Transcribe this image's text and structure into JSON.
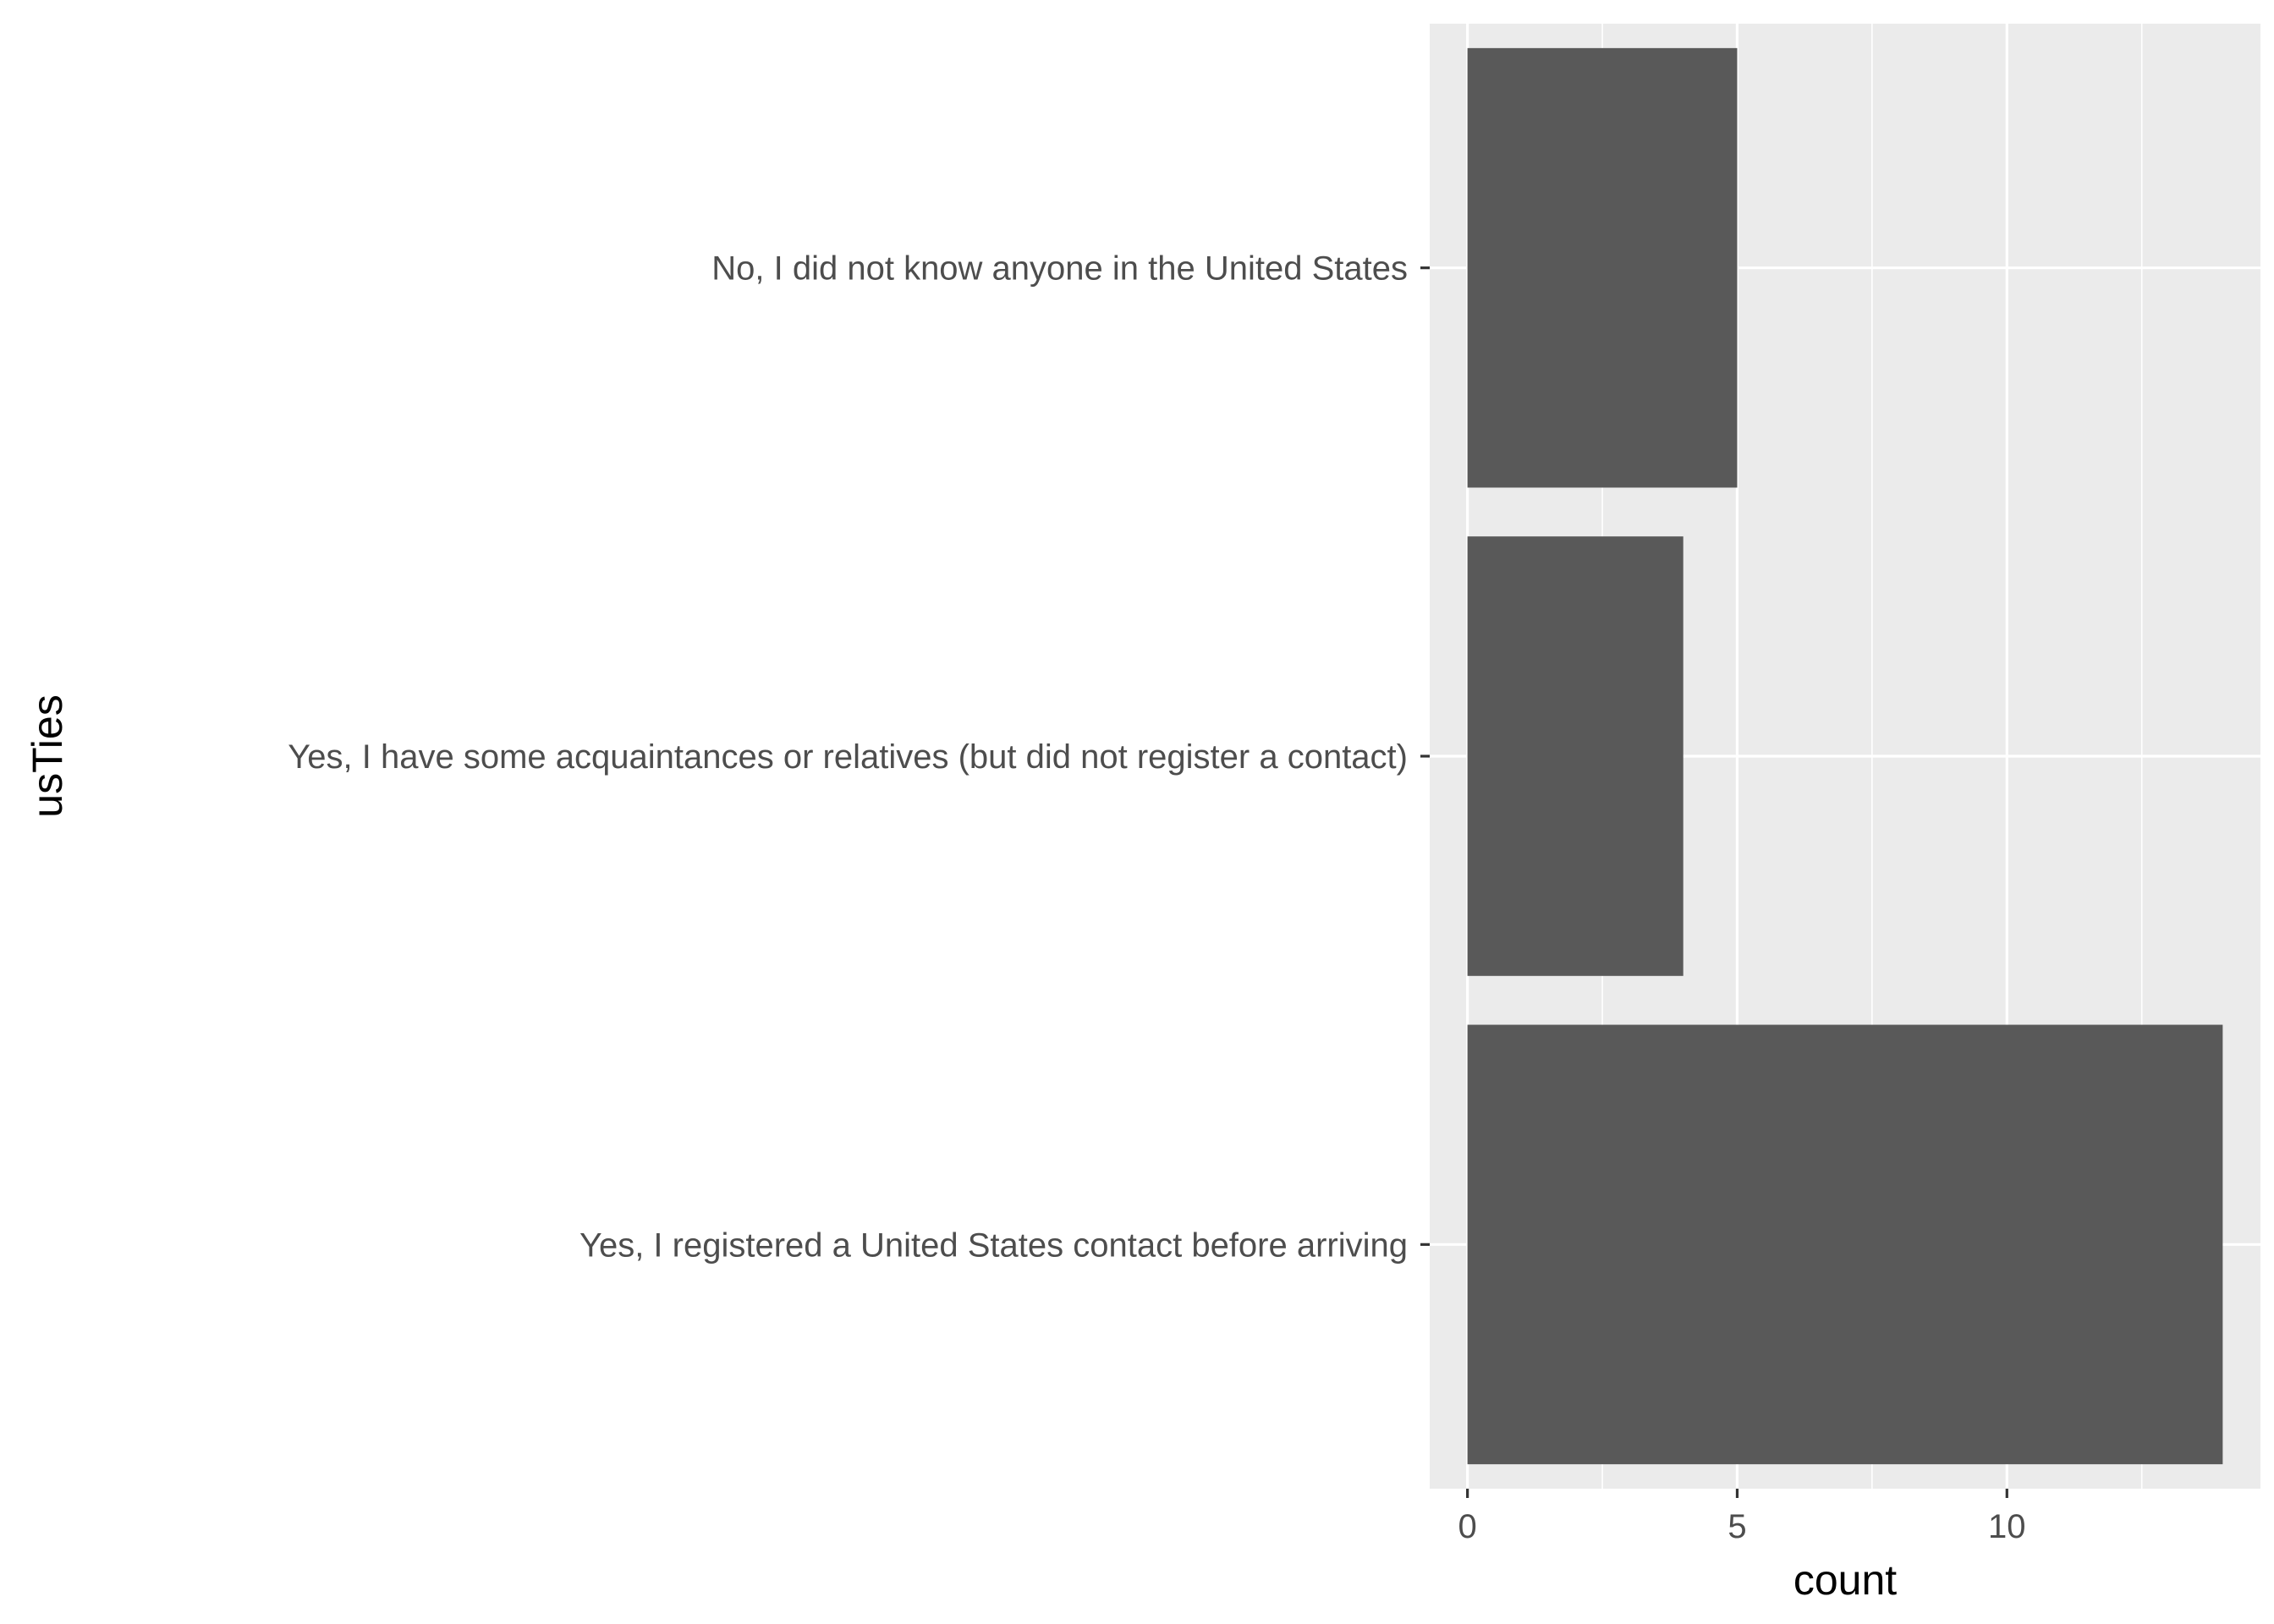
{
  "chart_data": {
    "type": "bar",
    "orientation": "horizontal",
    "categories": [
      "No, I did not know anyone in the United States",
      "Yes, I have some acquaintances or relatives (but did not register a contact)",
      "Yes, I registered a United States contact before arriving"
    ],
    "values": [
      5,
      4,
      14
    ],
    "xlabel": "count",
    "ylabel": "usTies",
    "xlim": [
      -0.7,
      14.7
    ],
    "xticks": [
      0,
      5,
      10
    ],
    "xtick_labels": [
      "0",
      "5",
      "10"
    ],
    "grid": true,
    "colors": {
      "panel": "#ebebeb",
      "bar": "#595959",
      "grid": "#ffffff"
    }
  }
}
